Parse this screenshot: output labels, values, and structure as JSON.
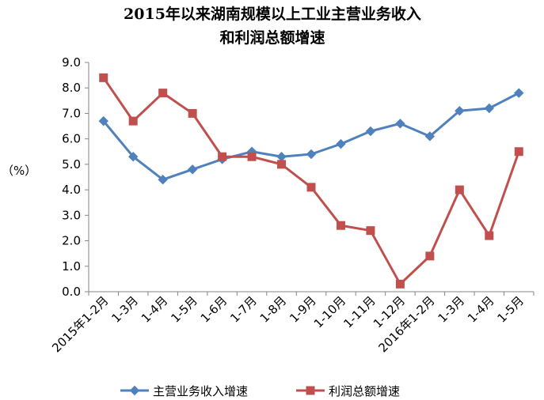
{
  "chart_data": {
    "type": "line",
    "title_lines": [
      "2015年以来湖南规模以上工业主营业务收入",
      "和利润总额增速"
    ],
    "ylabel": "（%）",
    "xlabel": "",
    "ylim": [
      0,
      9
    ],
    "y_ticks": [
      "0.0",
      "1.0",
      "2.0",
      "3.0",
      "4.0",
      "5.0",
      "6.0",
      "7.0",
      "8.0",
      "9.0"
    ],
    "grid": false,
    "legend_position": "bottom",
    "categories": [
      "2015年1-2月",
      "1-3月",
      "1-4月",
      "1-5月",
      "1-6月",
      "1-7月",
      "1-8月",
      "1-9月",
      "1-10月",
      "1-11月",
      "1-12月",
      "2016年1-2月",
      "1-3月",
      "1-4月",
      "1-5月"
    ],
    "series": [
      {
        "name": "主营业务收入增速",
        "color": "#4F81BD",
        "marker": "diamond",
        "values": [
          6.7,
          5.3,
          4.4,
          4.8,
          5.2,
          5.5,
          5.3,
          5.4,
          5.8,
          6.3,
          6.6,
          6.1,
          7.1,
          7.2,
          7.8
        ]
      },
      {
        "name": "利润总额增速",
        "color": "#C0504D",
        "marker": "square",
        "values": [
          8.4,
          6.7,
          7.8,
          7.0,
          5.3,
          5.3,
          5.0,
          4.1,
          2.6,
          2.4,
          0.3,
          1.4,
          4.0,
          2.2,
          5.5
        ]
      }
    ]
  }
}
